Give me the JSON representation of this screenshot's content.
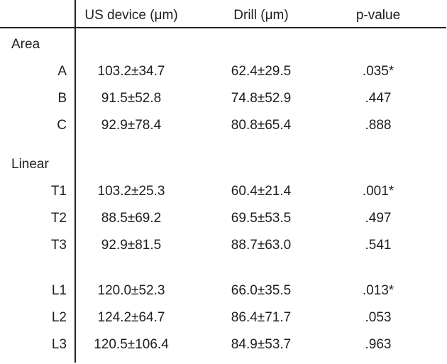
{
  "table": {
    "columns": [
      "US device (μm)",
      "Drill (μm)",
      "p-value"
    ],
    "sections": [
      {
        "label": "Area",
        "rows": [
          {
            "label": "A",
            "cells": [
              "103.2±34.7",
              "62.4±29.5",
              ".035*"
            ]
          },
          {
            "label": "B",
            "cells": [
              "91.5±52.8",
              "74.8±52.9",
              ".447"
            ]
          },
          {
            "label": "C",
            "cells": [
              "92.9±78.4",
              "80.8±65.4",
              ".888"
            ]
          }
        ]
      },
      {
        "label": "Linear",
        "rows": [
          {
            "label": "T1",
            "cells": [
              "103.2±25.3",
              "60.4±21.4",
              ".001*"
            ]
          },
          {
            "label": "T2",
            "cells": [
              "88.5±69.2",
              "69.5±53.5",
              ".497"
            ]
          },
          {
            "label": "T3",
            "cells": [
              "92.9±81.5",
              "88.7±63.0",
              ".541"
            ]
          }
        ]
      },
      {
        "rows": [
          {
            "label": "L1",
            "cells": [
              "120.0±52.3",
              "66.0±35.5",
              ".013*"
            ]
          },
          {
            "label": "L2",
            "cells": [
              "124.2±64.7",
              "86.4±71.7",
              ".053"
            ]
          },
          {
            "label": "L3",
            "cells": [
              "120.5±106.4",
              "84.9±53.7",
              ".963"
            ]
          }
        ]
      }
    ]
  }
}
